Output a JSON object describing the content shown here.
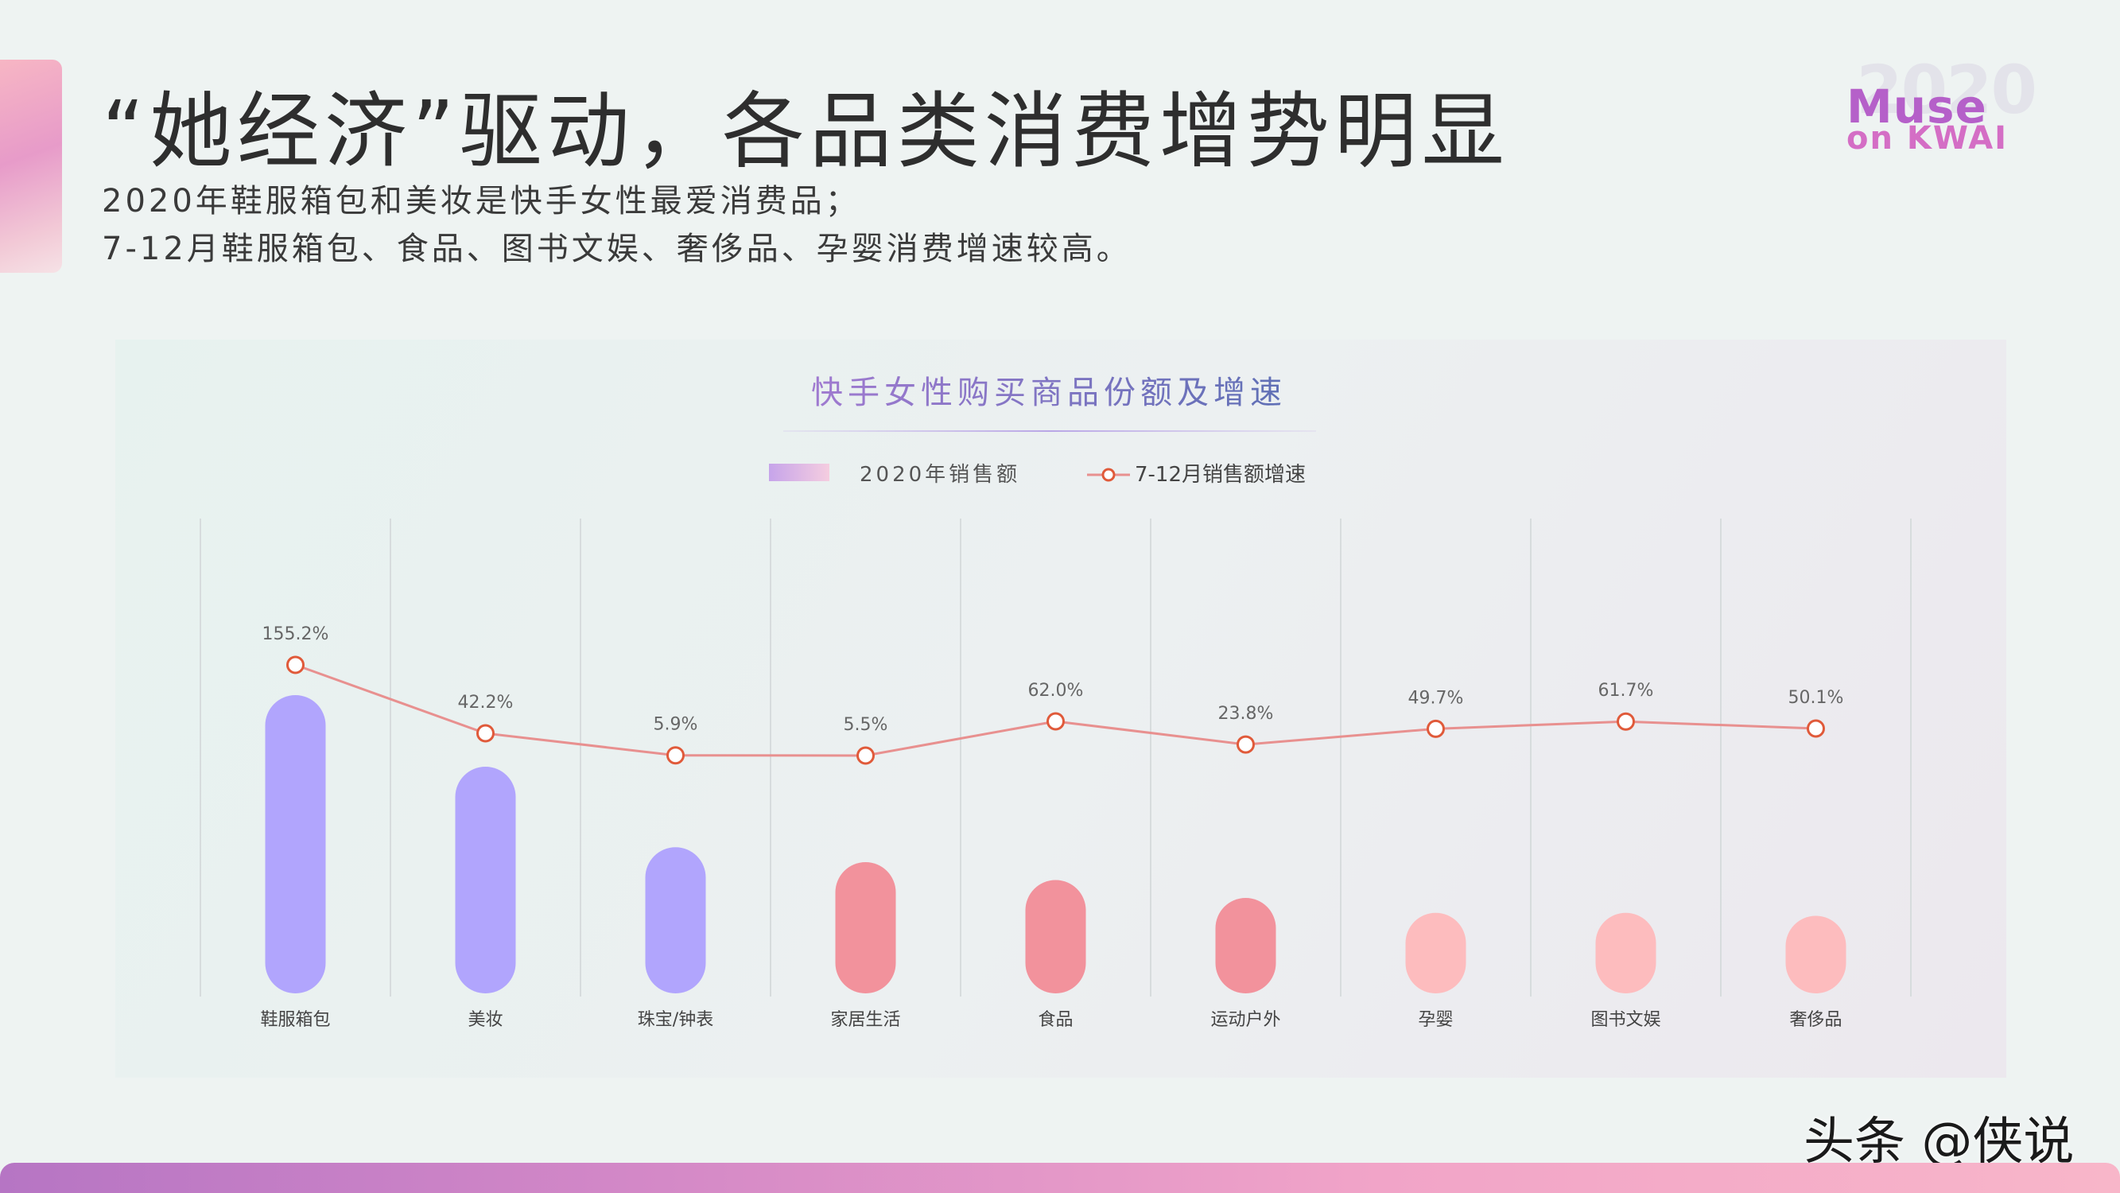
{
  "header": {
    "title": "“她经济”驱动，各品类消费增势明显",
    "subtitle_lines": [
      "2020年鞋服箱包和美妆是快手女性最爱消费品；",
      "7-12月鞋服箱包、食品、图书文娱、奢侈品、孕婴消费增速较高。"
    ]
  },
  "logo": {
    "year": "2020",
    "line1": "Muse",
    "line2": "on KWAI"
  },
  "watermark": "头条 @侠说",
  "colors": {
    "bar_purple": "#b1a5fd",
    "bar_red": "#f2929c",
    "bar_pink": "#fdbcbe",
    "line": "#e8908f",
    "marker": "#e05a3a",
    "title_gradient_start": "#a07ad0",
    "title_gradient_end": "#5f6fb5"
  },
  "chart_data": {
    "type": "bar",
    "title": "快手女性购买商品份额及增速",
    "legend_position": "top-center",
    "grid": {
      "vertical": true,
      "horizontal": false
    },
    "categories": [
      "鞋服箱包",
      "美妆",
      "珠宝/钟表",
      "家居生活",
      "食品",
      "运动户外",
      "孕婴",
      "图书文娱",
      "奢侈品"
    ],
    "series": [
      {
        "name": "2020年销售额",
        "kind": "bar",
        "values": [
          100,
          76,
          49,
          44,
          38,
          32,
          27,
          27,
          26
        ],
        "color_groups": [
          "purple",
          "purple",
          "purple",
          "red",
          "red",
          "red",
          "pink",
          "pink",
          "pink"
        ]
      },
      {
        "name": "7-12月销售额增速",
        "kind": "line",
        "values": [
          155.2,
          42.2,
          5.9,
          5.5,
          62.0,
          23.8,
          49.7,
          61.7,
          50.1
        ],
        "labels": [
          "155.2%",
          "42.2%",
          "5.9%",
          "5.5%",
          "62.0%",
          "23.8%",
          "49.7%",
          "61.7%",
          "50.1%"
        ]
      }
    ]
  }
}
